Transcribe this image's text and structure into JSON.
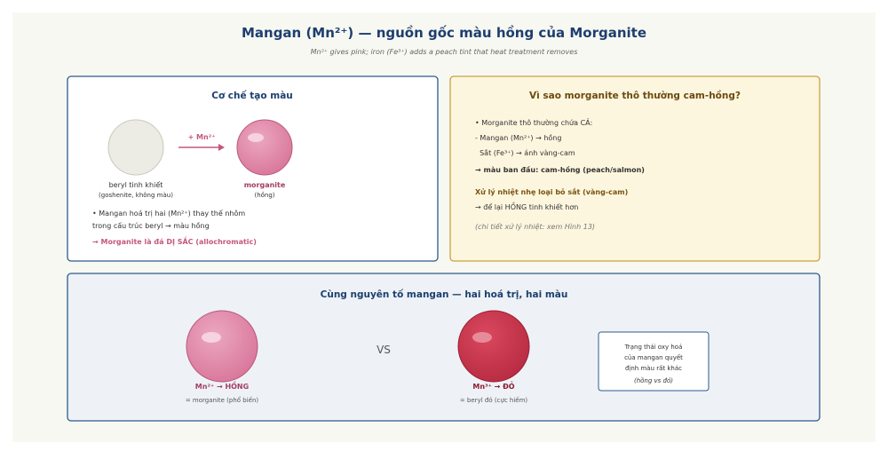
{
  "header": {
    "title": "Mangan (Mn²⁺) — nguồn gốc màu hồng của Morganite",
    "subtitle": "Mn²⁺ gives pink; iron (Fe³⁺) adds a peach tint that heat treatment removes"
  },
  "mechanism": {
    "title": "Cơ chế tạo màu",
    "arrow_label": "+ Mn²⁺",
    "left_label": "beryl tinh khiết",
    "left_sub": "(goshenite, không màu)",
    "right_label": "morganite",
    "right_sub": "(hồng)",
    "lines": [
      "• Mangan hoá trị hai (Mn²⁺) thay thế nhôm",
      "trong cấu trúc beryl → màu hồng"
    ],
    "conclusion": "→ Morganite là đá DỊ SẮC (allochromatic)"
  },
  "raw": {
    "title": "Vì sao morganite thô thường cam-hồng?",
    "lines": [
      "• Morganite thô thường chứa CẢ:",
      "- Mangan (Mn²⁺) → hồng",
      "  Sắt (Fe³⁺) → ánh vàng-cam"
    ],
    "result": "→ màu ban đầu: cam-hồng (peach/salmon)",
    "heat_title": "Xử lý nhiệt nhẹ loại bỏ sắt (vàng-cam)",
    "heat_result": "→ để lại HỒNG tinh khiết hơn",
    "note": "(chi tiết xử lý nhiệt: xem Hình 13)"
  },
  "compare": {
    "title": "Cùng nguyên tố mangan — hai hoá trị, hai màu",
    "vs": "VS",
    "left_label": "Mn²⁺ → HỒNG",
    "left_sub": "= morganite (phổ biến)",
    "right_label": "Mn³⁺ → ĐỎ",
    "right_sub": "= beryl đỏ (cực hiếm)",
    "note_lines": [
      "Trạng thái oxy hoá",
      "của mangan quyết",
      "định màu rất khác"
    ],
    "note_italic": "(hồng vs đỏ)"
  }
}
